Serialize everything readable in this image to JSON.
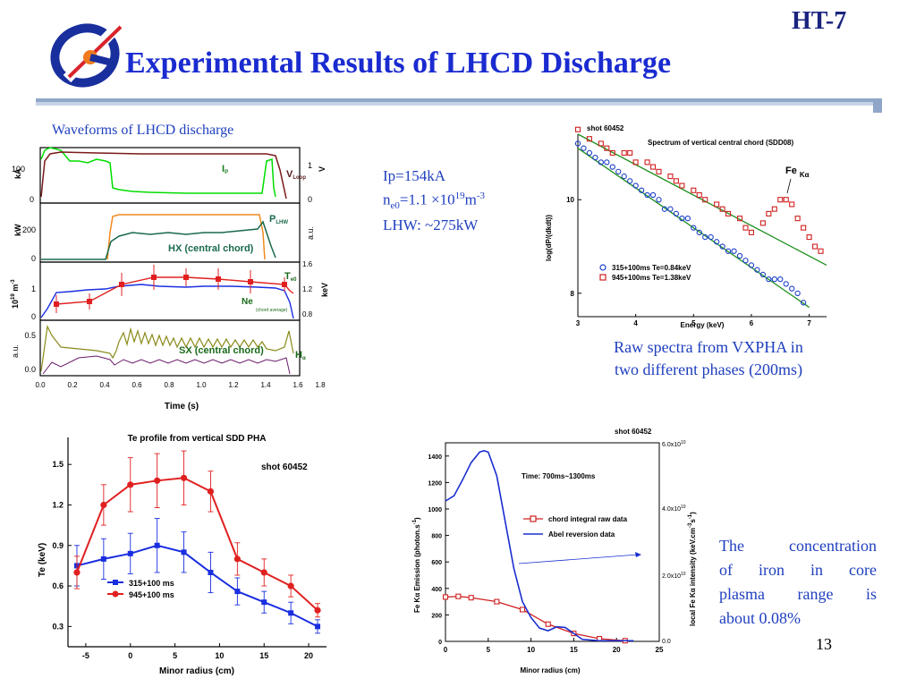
{
  "header": {
    "title": "Experimental Results of LHCD Discharge",
    "tag": "HT-7",
    "page_number": "13"
  },
  "waveforms": {
    "caption": "Waveforms of LHCD discharge",
    "panel1": {
      "ylabel_left": "kA",
      "ylabel_right": "V",
      "yticks_left": [
        "100",
        "0"
      ],
      "yticks_right": [
        "1",
        "0"
      ],
      "label_ip": "I",
      "label_ip_sub": "P",
      "label_vloop": "V",
      "label_vloop_sub": "Loop"
    },
    "panel2": {
      "ylabel_left": "kW",
      "ylabel_right": "a.u.",
      "yticks_left": [
        "200",
        "0"
      ],
      "label_plhw": "P",
      "label_plhw_sub": "LHW",
      "label_hx": "HX (central chord)"
    },
    "panel3": {
      "ylabel_left": "10",
      "ylabel_left_sup": "19",
      "ylabel_left_unit": "m",
      "ylabel_left_unit_sup": "-3",
      "ylabel_right": "keV",
      "yticks_left": [
        "1",
        "0"
      ],
      "yticks_right": [
        "1.6",
        "1.2",
        "0.8"
      ],
      "label_te": "T",
      "label_te_sub": "e0",
      "label_ne": "Ne",
      "label_ne_note": "(chord average)"
    },
    "panel4": {
      "ylabel_left": "a.u.",
      "yticks_left": [
        "0.5",
        "0.0"
      ],
      "label_sx": "SX (central chord)",
      "label_ha": "H",
      "label_ha_sub": "α"
    },
    "xaxis": {
      "label": "Time (s)",
      "ticks": [
        "0.0",
        "0.2",
        "0.4",
        "0.6",
        "0.8",
        "1.0",
        "1.2",
        "1.4",
        "1.6",
        "1.8"
      ]
    }
  },
  "params": {
    "ip": "Ip=154kA",
    "ne_prefix": "n",
    "ne_sub": "e0",
    "ne_value": "=1.1 ×10",
    "ne_exp": "19",
    "ne_unit": "m",
    "ne_unit_exp": "-3",
    "lhw": "LHW: ~275kW"
  },
  "spectrum": {
    "shot": "shot 60452",
    "title": "Spectrum of vertical central chord (SDD08)",
    "ylabel": "log(dP/(dkdt))",
    "xlabel": "Energy (keV)",
    "xticks": [
      "3",
      "4",
      "5",
      "6",
      "7"
    ],
    "yticks": [
      "10",
      "8"
    ],
    "fe_label": "Fe",
    "fe_sub": "Kα",
    "legend": [
      {
        "label": "315+100ms Te=0.84keV",
        "color": "#1a3ec8"
      },
      {
        "label": "945+100ms Te=1.38keV",
        "color": "#d02020"
      }
    ],
    "caption_line1": "Raw spectra from VXPHA in",
    "caption_line2": "two different phases (200ms)"
  },
  "te_profile": {
    "title": "Te profile from vertical SDD PHA",
    "shot": "shot 60452",
    "ylabel": "Te (keV)",
    "xlabel": "Minor radius (cm)",
    "xticks": [
      "-5",
      "0",
      "5",
      "10",
      "15",
      "20"
    ],
    "yticks": [
      "1.5",
      "1.2",
      "0.9",
      "0.6",
      "0.3"
    ],
    "legend": [
      {
        "label": "315+100 ms",
        "color": "#1a2ee0"
      },
      {
        "label": "945+100 ms",
        "color": "#e02020"
      }
    ]
  },
  "fe_emission": {
    "shot": "shot 60452",
    "time_label": "Time: 700ms~1300ms",
    "ylabel_left": "Fe Kα Emission (photon.s",
    "ylabel_left_sup": "-1",
    "ylabel_left_end": ")",
    "ylabel_right": "local Fe Kα intensity (keV.cm",
    "ylabel_right_sup": "-3",
    "ylabel_right_mid": "s",
    "ylabel_right_sup2": "-1",
    "ylabel_right_end": ")",
    "xlabel": "Minor radius (cm)",
    "xticks": [
      "0",
      "5",
      "10",
      "15",
      "20",
      "25"
    ],
    "yticks_left": [
      "1400",
      "1200",
      "1000",
      "800",
      "600",
      "400",
      "200",
      "0"
    ],
    "yticks_right": [
      "6.0x10",
      "4.0x10",
      "2.0x10",
      "0.0"
    ],
    "yticks_right_exp": "10",
    "legend": [
      {
        "label": "chord integral raw data",
        "color": "#d02020"
      },
      {
        "label": "Abel reversion data",
        "color": "#1a2ed0"
      }
    ],
    "caption": [
      "The concentration",
      "of iron in core",
      "plasma range is",
      "about 0.08%"
    ]
  },
  "chart_data": [
    {
      "type": "scatter",
      "title": "Spectrum of vertical central chord (SDD08)",
      "xlabel": "Energy (keV)",
      "ylabel": "log(dP/(dkdt))",
      "xlim": [
        3,
        7.3
      ],
      "ylim": [
        7.5,
        11.4
      ],
      "series": [
        {
          "name": "315+100ms Te=0.84keV",
          "marker": "circle",
          "color": "#1a3ec8",
          "x": [
            3.0,
            3.1,
            3.2,
            3.3,
            3.4,
            3.5,
            3.6,
            3.7,
            3.8,
            3.9,
            4.0,
            4.1,
            4.2,
            4.3,
            4.4,
            4.5,
            4.6,
            4.7,
            4.8,
            4.9,
            5.0,
            5.1,
            5.2,
            5.3,
            5.4,
            5.5,
            5.6,
            5.7,
            5.8,
            5.9,
            6.0,
            6.1,
            6.2,
            6.3,
            6.4,
            6.5,
            6.6,
            6.7,
            6.8,
            6.9
          ],
          "y": [
            11.2,
            11.1,
            11.0,
            10.9,
            10.8,
            10.8,
            10.7,
            10.6,
            10.5,
            10.4,
            10.3,
            10.2,
            10.1,
            10.1,
            10.0,
            9.8,
            9.8,
            9.7,
            9.6,
            9.6,
            9.4,
            9.3,
            9.2,
            9.2,
            9.1,
            9.0,
            8.9,
            8.9,
            8.8,
            8.7,
            8.6,
            8.5,
            8.4,
            8.3,
            8.3,
            8.3,
            8.2,
            8.1,
            8.0,
            7.8
          ]
        },
        {
          "name": "945+100ms Te=1.38keV",
          "marker": "square",
          "color": "#d02020",
          "x": [
            3.0,
            3.2,
            3.4,
            3.5,
            3.6,
            3.8,
            3.9,
            4.0,
            4.2,
            4.3,
            4.4,
            4.6,
            4.7,
            4.8,
            5.0,
            5.1,
            5.2,
            5.4,
            5.5,
            5.6,
            5.8,
            5.9,
            6.0,
            6.2,
            6.3,
            6.4,
            6.5,
            6.6,
            6.7,
            6.8,
            6.9,
            7.0,
            7.1,
            7.2
          ],
          "y": [
            11.5,
            11.3,
            11.2,
            11.1,
            11.0,
            11.0,
            11.0,
            10.8,
            10.8,
            10.7,
            10.6,
            10.5,
            10.4,
            10.3,
            10.2,
            10.1,
            10.0,
            9.9,
            9.8,
            9.7,
            9.6,
            9.4,
            9.3,
            9.5,
            9.7,
            9.8,
            10.0,
            10.0,
            9.9,
            9.6,
            9.4,
            9.2,
            9.0,
            8.9
          ]
        }
      ],
      "fits": [
        {
          "series": "315+100ms Te=0.84keV",
          "color": "#1e8f1e",
          "x": [
            3.0,
            7.0
          ],
          "y": [
            11.1,
            7.7
          ]
        },
        {
          "series": "945+100ms Te=1.38keV",
          "color": "#1e8f1e",
          "x": [
            3.0,
            7.3
          ],
          "y": [
            11.4,
            8.6
          ]
        }
      ]
    },
    {
      "type": "line",
      "title": "Te profile from vertical SDD PHA",
      "xlabel": "Minor radius (cm)",
      "ylabel": "Te (keV)",
      "xlim": [
        -7,
        22
      ],
      "ylim": [
        0.15,
        1.7
      ],
      "series": [
        {
          "name": "315+100 ms",
          "color": "#1a2ee0",
          "marker": "square",
          "x": [
            -6,
            -3,
            0,
            3,
            6,
            9,
            12,
            15,
            18,
            21
          ],
          "y": [
            0.75,
            0.8,
            0.84,
            0.9,
            0.85,
            0.7,
            0.56,
            0.48,
            0.4,
            0.3
          ],
          "err": [
            0.15,
            0.15,
            0.15,
            0.2,
            0.15,
            0.15,
            0.1,
            0.08,
            0.08,
            0.05
          ]
        },
        {
          "name": "945+100 ms",
          "color": "#e02020",
          "marker": "circle",
          "x": [
            -6,
            -3,
            0,
            3,
            6,
            9,
            12,
            15,
            18,
            21
          ],
          "y": [
            0.7,
            1.2,
            1.35,
            1.38,
            1.4,
            1.3,
            0.8,
            0.7,
            0.6,
            0.42
          ],
          "err": [
            0.12,
            0.15,
            0.2,
            0.2,
            0.2,
            0.15,
            0.12,
            0.1,
            0.08,
            0.05
          ]
        }
      ]
    },
    {
      "type": "line",
      "xlabel": "Minor radius (cm)",
      "xlim": [
        0,
        25
      ],
      "ylim": [
        0,
        1500
      ],
      "series": [
        {
          "name": "chord integral raw data",
          "color": "#d02020",
          "marker": "square",
          "x": [
            0,
            1.5,
            3,
            6,
            9,
            12,
            15,
            18,
            21
          ],
          "y": [
            335,
            340,
            330,
            300,
            240,
            130,
            60,
            20,
            5
          ]
        },
        {
          "name": "Abel reversion data",
          "color": "#1a2ed0",
          "x": [
            0,
            1,
            2,
            3,
            4,
            4.5,
            5,
            6,
            7,
            8,
            9,
            10,
            11,
            12,
            13,
            14,
            15,
            16,
            17,
            18,
            20,
            22
          ],
          "y": [
            1060,
            1100,
            1220,
            1350,
            1430,
            1440,
            1430,
            1250,
            900,
            550,
            300,
            180,
            100,
            80,
            110,
            105,
            60,
            15,
            10,
            5,
            5,
            5
          ]
        }
      ]
    }
  ]
}
